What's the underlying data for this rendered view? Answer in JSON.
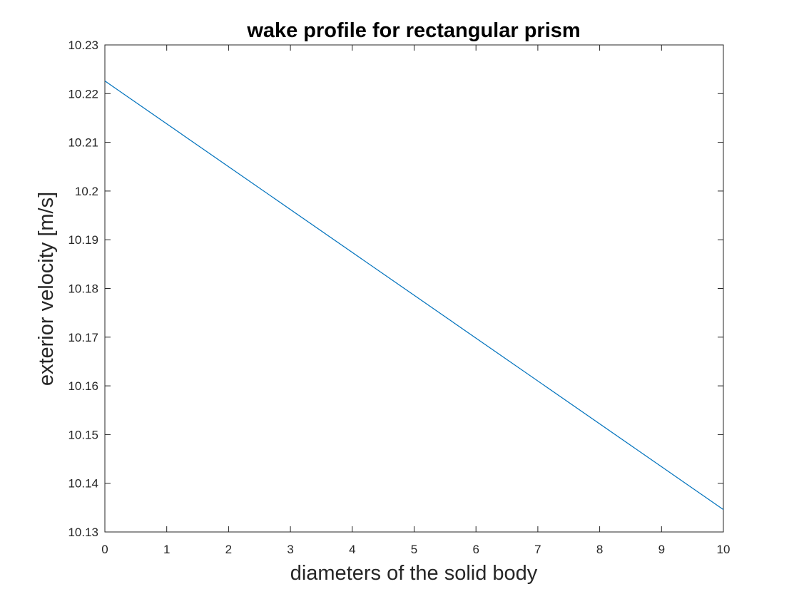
{
  "chart_data": {
    "type": "line",
    "title": "wake profile for rectangular prism",
    "xlabel": "diameters of the solid body",
    "ylabel": "exterior velocity [m/s]",
    "xlim": [
      0,
      10
    ],
    "ylim": [
      10.13,
      10.23
    ],
    "xticks": [
      "0",
      "1",
      "2",
      "3",
      "4",
      "5",
      "6",
      "7",
      "8",
      "9",
      "10"
    ],
    "yticks": [
      "10.13",
      "10.14",
      "10.15",
      "10.16",
      "10.17",
      "10.18",
      "10.19",
      "10.2",
      "10.21",
      "10.22",
      "10.23"
    ],
    "grid": false,
    "box": true,
    "series": [
      {
        "x": [
          0,
          10
        ],
        "y": [
          10.2226,
          10.1346
        ],
        "color": "#0072BD"
      }
    ]
  },
  "colors": {
    "axes": "#262626",
    "line": "#0072BD",
    "background": "#ffffff"
  }
}
